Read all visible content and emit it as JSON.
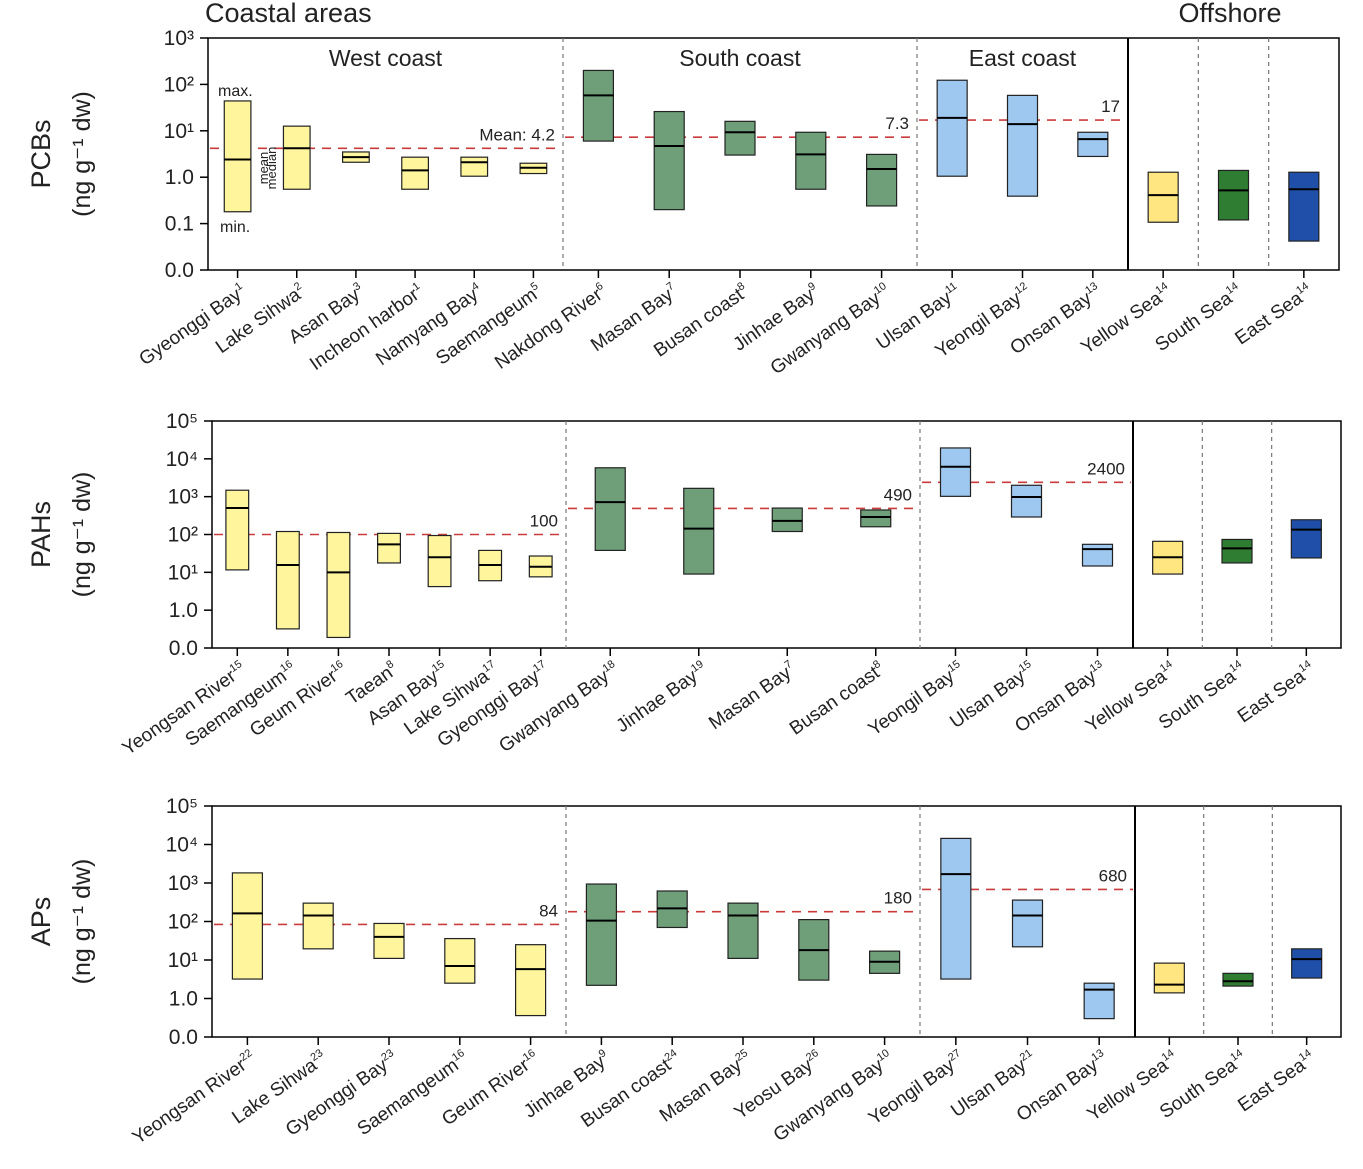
{
  "header": {
    "left": "Coastal areas",
    "right": "Offshore"
  },
  "chart_data": [
    {
      "type": "range-box",
      "ylabel": [
        "PCBs",
        "(ng g⁻¹ dw)"
      ],
      "log": true,
      "ylim": [
        0.01,
        1000
      ],
      "yticks": [
        {
          "value": 0.01,
          "label": "0.0"
        },
        0.1,
        {
          "value": 1,
          "label": "1.0"
        },
        {
          "value": 10,
          "label": "10¹"
        },
        {
          "value": 100,
          "label": "10²"
        },
        {
          "value": 1000,
          "label": "10³"
        }
      ],
      "annotations": [
        "max.",
        "min.",
        "mean",
        "median"
      ],
      "series": [
        {
          "name": "West coast",
          "color": "#fff59d",
          "categories": [
            "Gyeonggi Bay",
            "Lake Sihwa",
            "Asan Bay",
            "Incheon harbor",
            "Namyang Bay",
            "Saemangeum"
          ],
          "refs": [
            "1",
            "2",
            "3",
            "1",
            "4",
            "5"
          ],
          "max": [
            44,
            12.6,
            3.5,
            2.7,
            2.7,
            2.0
          ],
          "median": [
            2.4,
            4.2,
            2.7,
            1.4,
            2.1,
            1.6
          ],
          "min": [
            0.18,
            0.55,
            2.1,
            0.55,
            1.05,
            1.2
          ],
          "mean": 4.2,
          "mean_label": "Mean: 4.2"
        },
        {
          "name": "South coast",
          "color": "#6f9f79",
          "categories": [
            "Nakdong River",
            "Masan Bay",
            "Busan coast",
            "Jinhae Bay",
            "Gwanyang Bay"
          ],
          "refs": [
            "6",
            "7",
            "8",
            "9",
            "10"
          ],
          "max": [
            200,
            26,
            16,
            9.3,
            3.1
          ],
          "median": [
            58,
            4.7,
            9.3,
            3.1,
            1.5
          ],
          "min": [
            6,
            0.2,
            3.0,
            0.55,
            0.24
          ],
          "mean": 7.3
        },
        {
          "name": "East coast",
          "color": "#9ec8f0",
          "categories": [
            "Ulsan Bay",
            "Yeongil Bay",
            "Onsan Bay"
          ],
          "refs": [
            "11",
            "12",
            "13"
          ],
          "max": [
            123,
            58,
            9.3
          ],
          "median": [
            19,
            13.9,
            6.6
          ],
          "min": [
            1.05,
            0.39,
            2.8
          ],
          "mean": 17
        },
        {
          "colors": [
            "#ffe680",
            "#2e7d32",
            "#1f4fa8"
          ],
          "categories": [
            "Yellow Sea",
            "South Sea",
            "East Sea"
          ],
          "refs": [
            "14",
            "14",
            "14"
          ],
          "max": [
            1.28,
            1.4,
            1.28
          ],
          "median": [
            0.41,
            0.52,
            0.55
          ],
          "min": [
            0.107,
            0.12,
            0.042
          ]
        }
      ]
    },
    {
      "type": "range-box",
      "ylabel": [
        "PAHs",
        "(ng g⁻¹ dw)"
      ],
      "log": true,
      "ylim": [
        0.1,
        100000
      ],
      "yticks": [
        {
          "value": 0.1,
          "label": "0.0"
        },
        {
          "value": 1,
          "label": "1.0"
        },
        {
          "value": 10,
          "label": "10¹"
        },
        {
          "value": 100,
          "label": "10²"
        },
        {
          "value": 1000,
          "label": "10³"
        },
        {
          "value": 10000,
          "label": "10⁴"
        },
        {
          "value": 100000,
          "label": "10⁵"
        }
      ],
      "series": [
        {
          "color": "#fff59d",
          "categories": [
            "Yeongsan River",
            "Saemangeum",
            "Geum River",
            "Taean",
            "Asan Bay",
            "Lake Sihwa",
            "Gyeonggi Bay"
          ],
          "refs": [
            "15",
            "16",
            "16",
            "8",
            "15",
            "17",
            "17"
          ],
          "max": [
            1480,
            120,
            113,
            107,
            94,
            38,
            27
          ],
          "median": [
            500,
            15.6,
            10,
            55,
            25,
            15.6,
            14
          ],
          "min": [
            11.6,
            0.32,
            0.19,
            17.7,
            4.2,
            6,
            7.6
          ],
          "mean": 100
        },
        {
          "color": "#6f9f79",
          "categories": [
            "Gwanyang Bay",
            "Jinhae Bay",
            "Masan Bay",
            "Busan coast"
          ],
          "refs": [
            "18",
            "19",
            "7",
            "8"
          ],
          "max": [
            5800,
            1660,
            500,
            445
          ],
          "median": [
            720,
            143,
            230,
            290
          ],
          "min": [
            38,
            9,
            120,
            160
          ],
          "mean": 490
        },
        {
          "color": "#9ec8f0",
          "categories": [
            "Yeongil Bay",
            "Ulsan Bay",
            "Onsan Bay"
          ],
          "refs": [
            "15",
            "15",
            "13"
          ],
          "max": [
            19400,
            2000,
            55
          ],
          "median": [
            6200,
            980,
            41
          ],
          "min": [
            1020,
            290,
            14.7
          ],
          "mean": 2400
        },
        {
          "colors": [
            "#ffe680",
            "#2e7d32",
            "#1f4fa8"
          ],
          "categories": [
            "Yellow Sea",
            "South Sea",
            "East Sea"
          ],
          "refs": [
            "14",
            "14",
            "14"
          ],
          "max": [
            66,
            74,
            245
          ],
          "median": [
            25,
            43,
            135
          ],
          "min": [
            9,
            17.7,
            24
          ]
        }
      ]
    },
    {
      "type": "range-box",
      "ylabel": [
        "APs",
        "(ng g⁻¹ dw)"
      ],
      "log": true,
      "ylim": [
        0.1,
        100000
      ],
      "yticks": [
        {
          "value": 0.1,
          "label": "0.0"
        },
        {
          "value": 1,
          "label": "1.0"
        },
        {
          "value": 10,
          "label": "10¹"
        },
        {
          "value": 100,
          "label": "10²"
        },
        {
          "value": 1000,
          "label": "10³"
        },
        {
          "value": 10000,
          "label": "10⁴"
        },
        {
          "value": 100000,
          "label": "10⁵"
        }
      ],
      "series": [
        {
          "color": "#fff59d",
          "categories": [
            "Yeongsan River",
            "Lake Sihwa",
            "Gyeonggi Bay",
            "Saemangeum",
            "Geum River"
          ],
          "refs": [
            "22",
            "23",
            "23",
            "16",
            "16"
          ],
          "max": [
            1830,
            300,
            89,
            36,
            25
          ],
          "median": [
            162,
            143,
            40,
            7,
            5.8
          ],
          "min": [
            3.2,
            19.5,
            11,
            2.5,
            0.36
          ],
          "mean": 84
        },
        {
          "color": "#6f9f79",
          "categories": [
            "Jinhae Bay",
            "Busan coast",
            "Masan Bay",
            "Yeosu Bay",
            "Gwanyang Bay"
          ],
          "refs": [
            "9",
            "24",
            "25",
            "26",
            "10"
          ],
          "max": [
            940,
            620,
            300,
            112,
            17
          ],
          "median": [
            105,
            220,
            143,
            18,
            9
          ],
          "min": [
            2.2,
            70,
            11,
            3,
            4.5
          ],
          "mean": 180
        },
        {
          "color": "#9ec8f0",
          "categories": [
            "Yeongil Bay",
            "Ulsan Bay",
            "Onsan Bay"
          ],
          "refs": [
            "27",
            "21",
            "13"
          ],
          "max": [
            14400,
            360,
            2.5
          ],
          "median": [
            1700,
            143,
            1.7
          ],
          "min": [
            3.2,
            22,
            0.3
          ],
          "mean": 680
        },
        {
          "colors": [
            "#ffe680",
            "#2e7d32",
            "#1f4fa8"
          ],
          "categories": [
            "Yellow Sea",
            "South Sea",
            "East Sea"
          ],
          "refs": [
            "14",
            "14",
            "14"
          ],
          "max": [
            8.3,
            4.5,
            19.5
          ],
          "median": [
            2.3,
            2.8,
            10.5
          ],
          "min": [
            1.4,
            2.1,
            3.4
          ]
        }
      ]
    }
  ]
}
